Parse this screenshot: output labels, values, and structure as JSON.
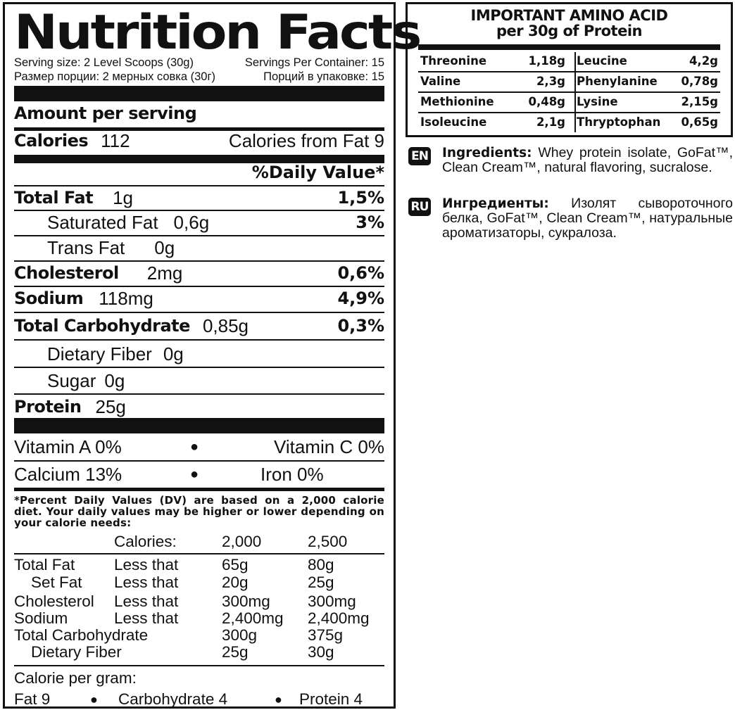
{
  "nutrition": {
    "title": "Nutrition Facts",
    "serving_size_en": "Serving size: 2 Level Scoops (30g)",
    "servings_en": "Servings Per Container: 15",
    "serving_size_ru": "Размер порции: 2 мерных совка (30г)",
    "servings_ru": "Порций в упаковке: 15",
    "amount_per_serving": "Amount per serving",
    "calories_label": "Calories",
    "calories_value": "112",
    "calories_from_fat": "Calories from Fat 9",
    "daily_value_header": "%Daily Value*",
    "nutrients": [
      {
        "label": "Total Fat",
        "amount": "1g",
        "dv": "1,5%"
      },
      {
        "label": "Saturated Fat",
        "amount": "0,6g",
        "dv": "3%"
      },
      {
        "label": "Trans Fat",
        "amount": "0g",
        "dv": ""
      },
      {
        "label": "Cholesterol",
        "amount": "2mg",
        "dv": "0,6%"
      },
      {
        "label": "Sodium",
        "amount": "118mg",
        "dv": "4,9%"
      },
      {
        "label": "Total Carbohydrate",
        "amount": "0,85g",
        "dv": "0,3%"
      },
      {
        "label": "Dietary Fiber",
        "amount": "0g",
        "dv": ""
      },
      {
        "label": "Sugar",
        "amount": "0g",
        "dv": ""
      },
      {
        "label": "Protein",
        "amount": "25g",
        "dv": ""
      }
    ],
    "vitamins": [
      {
        "left": "Vitamin A 0%",
        "right": "Vitamin C 0%"
      },
      {
        "left": "Calcium 13%",
        "right": "Iron 0%"
      }
    ],
    "footnote": "*Percent Daily Values (DV) are based on a 2,000 calorie diet. Your daily values may be higher or lower depending on your calorie needs:",
    "dv_table": {
      "header": {
        "label": "Calories:",
        "c1": "2,000",
        "c2": "2,500"
      },
      "rows": [
        {
          "name": "Total Fat",
          "qual": "Less that",
          "c1": "65g",
          "c2": "80g"
        },
        {
          "name": "Set Fat",
          "qual": "Less that",
          "c1": "20g",
          "c2": "25g"
        },
        {
          "name": "Cholesterol",
          "qual": "Less that",
          "c1": "300mg",
          "c2": "300mg"
        },
        {
          "name": "Sodium",
          "qual": "Less that",
          "c1": "2,400mg",
          "c2": "2,400mg"
        },
        {
          "name": "Total Carbohydrate",
          "qual": "",
          "c1": "300g",
          "c2": "375g"
        },
        {
          "name": "Dietary Fiber",
          "qual": "",
          "c1": "25g",
          "c2": "30g"
        }
      ]
    },
    "calorie_per_gram": {
      "label": "Calorie per gram:",
      "fat": "Fat 9",
      "carb": "Carbohydrate 4",
      "protein": "Protein 4"
    }
  },
  "amino": {
    "title_line1": "IMPORTANT AMINO ACID",
    "title_line2": "per 30g of Protein",
    "rows": [
      {
        "n1": "Threonine",
        "v1": "1,18g",
        "n2": "Leucine",
        "v2": "4,2g"
      },
      {
        "n1": "Valine",
        "v1": "2,3g",
        "n2": "Phenylanine",
        "v2": "0,78g"
      },
      {
        "n1": "Methionine",
        "v1": "0,48g",
        "n2": "Lysine",
        "v2": "2,15g"
      },
      {
        "n1": "Isoleucine",
        "v1": "2,1g",
        "n2": "Thryptophan",
        "v2": "0,65g"
      }
    ]
  },
  "ingredients": {
    "en_tag": "EN",
    "en_label": "Ingredients:",
    "en_text": "Whey protein isolate, GoFat™, Clean Cream™, natural flavoring, sucralose.",
    "ru_tag": "RU",
    "ru_label": "Ингредиенты:",
    "ru_text": "Изолят сывороточного белка, GoFat™, Clean Cream™, натуральные ароматизаторы, сукралоза."
  }
}
